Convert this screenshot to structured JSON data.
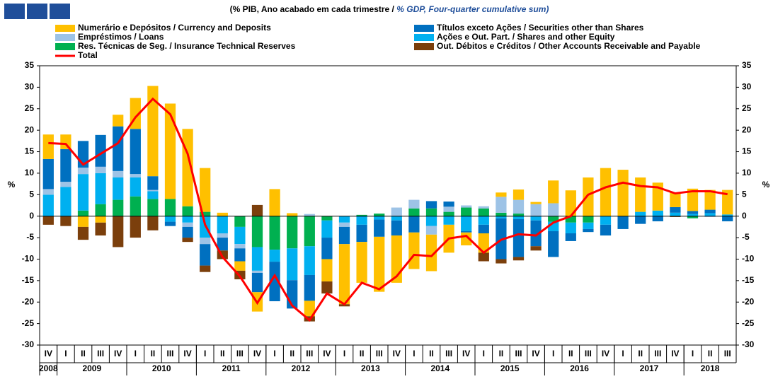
{
  "chart_data": {
    "type": "stacked_bar_line",
    "title_pt": "(% PIB, Ano acabado em cada trimestre  /",
    "title_en": "% GDP, Four-quarter cumulative sum)",
    "y_label": "%",
    "y2_label": "%",
    "categories": [
      "IV",
      "I",
      "II",
      "III",
      "IV",
      "I",
      "II",
      "III",
      "IV",
      "I",
      "II",
      "III",
      "IV",
      "I",
      "II",
      "III",
      "IV",
      "I",
      "II",
      "III",
      "IV",
      "I",
      "II",
      "III",
      "IV",
      "I",
      "II",
      "III",
      "IV",
      "I",
      "II",
      "III",
      "IV",
      "I",
      "II",
      "III",
      "IV",
      "I",
      "II",
      "III"
    ],
    "years": [
      "2008",
      "2009",
      "2010",
      "2011",
      "2012",
      "2013",
      "2014",
      "2015",
      "2016",
      "2017",
      "2018"
    ],
    "ylim": [
      -30,
      35
    ],
    "yticks": [
      -30,
      -25,
      -20,
      -15,
      -10,
      -5,
      0,
      5,
      10,
      15,
      20,
      25,
      30,
      35
    ],
    "y2lim": [
      -30,
      35
    ],
    "y2ticks": [
      -30,
      -25,
      -20,
      -15,
      -10,
      -5,
      0,
      5,
      10,
      15,
      20,
      25,
      30,
      35
    ],
    "series": [
      {
        "name": "Res. Técnicas de Seg. / Insurance Technical Reserves",
        "color": "#00b050",
        "type": "bar",
        "values": [
          0,
          0,
          1.3,
          2.8,
          3.8,
          4.6,
          4,
          4,
          2.3,
          1,
          0,
          -2.5,
          -7.2,
          -7.8,
          -7.5,
          -7,
          -1,
          0,
          0.3,
          0.6,
          0,
          1.8,
          1.8,
          1,
          2,
          1.8,
          0.8,
          0.6,
          0,
          -1.3,
          -1.5,
          -1.5,
          0,
          0,
          0,
          0,
          0,
          -0.5,
          0,
          0
        ]
      },
      {
        "name": "Ações e Out. Part. / Shares and other Equity",
        "color": "#00b0f0",
        "type": "bar",
        "values": [
          5,
          6.8,
          8.5,
          7.2,
          5.2,
          4.4,
          1.8,
          -1.3,
          -1.5,
          -5,
          -4,
          -4,
          -5.5,
          -2.8,
          -7.4,
          -6.7,
          -4,
          -1.5,
          -2,
          -0.8,
          -1,
          0,
          -2.3,
          -2,
          -3.5,
          -2,
          -0.5,
          -0.7,
          -1,
          -2.2,
          -2.5,
          -1.5,
          -2,
          0,
          1,
          1.3,
          0.8,
          0.5,
          0.7,
          0.4
        ]
      },
      {
        "name": "Empréstimos / Loans",
        "color": "#9dc3e6",
        "type": "bar",
        "values": [
          1.3,
          1.2,
          1.5,
          1.5,
          1.5,
          0.8,
          0.3,
          0,
          -1,
          -1.5,
          -1,
          -1,
          -0.5,
          0,
          0,
          0.5,
          0,
          -1,
          0,
          0,
          2,
          2,
          -2,
          1.2,
          0.5,
          0.5,
          3.7,
          3.2,
          2.8,
          3,
          0,
          0,
          0,
          0,
          0,
          0,
          0,
          0,
          -0.2,
          0
        ]
      },
      {
        "name": "Títulos exceto Ações / Securities other than Shares",
        "color": "#0070c0",
        "type": "bar",
        "values": [
          7,
          7.6,
          6.2,
          7.4,
          10.4,
          10.5,
          3.2,
          -1,
          -2.5,
          -5,
          -3,
          -3,
          -4.5,
          -9.2,
          -6.6,
          -6,
          -5,
          -4,
          -4,
          -4,
          -3.5,
          -3.8,
          1.7,
          1.2,
          -0.3,
          -2,
          -9.5,
          -8.8,
          -6,
          -6,
          -1.8,
          -0.7,
          -2.5,
          -3,
          -1.8,
          -1.2,
          1.3,
          0.7,
          0.8,
          -1.2
        ]
      },
      {
        "name": "Numerário e Depósitos / Currency and Deposits",
        "color": "#ffc000",
        "type": "bar",
        "values": [
          5.7,
          3.4,
          -2.5,
          -1.5,
          2.7,
          7.2,
          21,
          22.2,
          18,
          10.2,
          0.8,
          -2.2,
          -4.5,
          6.3,
          0.7,
          -3.6,
          -5.2,
          -14,
          -9.5,
          -12.8,
          -11,
          -8.5,
          -8.5,
          -6.5,
          -3,
          -4.5,
          1,
          2.4,
          0.5,
          5.3,
          6,
          9,
          11.2,
          10.8,
          8,
          6.5,
          3.4,
          5.2,
          4.6,
          5.7
        ]
      },
      {
        "name": "Out. Débitos e Créditos / Other Accounts Receivable and Payable",
        "color": "#7b3f0c",
        "type": "bar",
        "values": [
          -2,
          -2.3,
          -3,
          -3,
          -7.2,
          -5,
          -3.3,
          0,
          -1,
          -1.5,
          -2,
          -2,
          2.6,
          0,
          0,
          -1.2,
          -2.8,
          -0.5,
          0,
          0,
          0,
          0,
          0,
          0,
          0,
          -2,
          -1,
          -0.8,
          -1,
          0,
          0,
          0,
          0,
          0,
          0,
          0,
          -0.2,
          0,
          0,
          0
        ]
      },
      {
        "name": "Total",
        "color": "#ff0000",
        "type": "line",
        "values": [
          17,
          16.8,
          12,
          14.5,
          17,
          23,
          27.3,
          23.7,
          14.5,
          -2,
          -9.5,
          -14,
          -20.2,
          -13.8,
          -20.8,
          -24.2,
          -18,
          -20.5,
          -15.5,
          -17,
          -14,
          -9,
          -9.3,
          -5.2,
          -4.6,
          -8.5,
          -5.5,
          -4.2,
          -4.5,
          -1.5,
          0,
          5,
          6.7,
          7.8,
          7,
          6.7,
          5.3,
          5.8,
          5.8,
          5.1
        ]
      }
    ]
  }
}
